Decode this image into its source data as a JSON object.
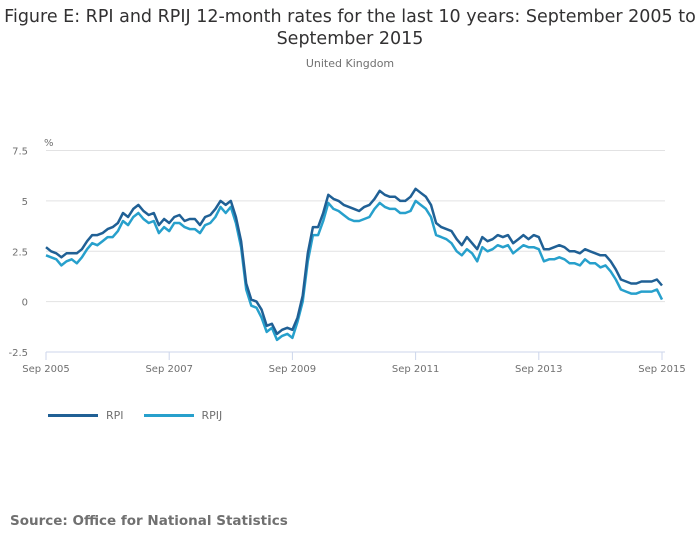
{
  "chart_data": {
    "type": "line",
    "title": "Figure E: RPI and RPIJ 12-month rates for the last 10 years: September 2005 to September 2015",
    "subtitle": "United Kingdom",
    "ylabel": "%",
    "xlabel": "",
    "ylim": [
      -2.5,
      7.5
    ],
    "yticks": [
      7.5,
      5,
      2.5,
      0,
      -2.5
    ],
    "ytick_labels": [
      "7.5",
      "5",
      "2.5",
      "0",
      "-2.5"
    ],
    "x_start": "Sep 2005",
    "x_end": "Sep 2015",
    "xtick_labels": [
      "Sep 2005",
      "Sep 2007",
      "Sep 2009",
      "Sep 2011",
      "Sep 2013",
      "Sep 2015"
    ],
    "grid": true,
    "legend_position": "bottom-left",
    "series": [
      {
        "name": "RPI",
        "color": "#206095",
        "values": [
          2.7,
          2.5,
          2.4,
          2.2,
          2.4,
          2.4,
          2.4,
          2.6,
          3.0,
          3.3,
          3.3,
          3.4,
          3.6,
          3.7,
          3.9,
          4.4,
          4.2,
          4.6,
          4.8,
          4.5,
          4.3,
          4.4,
          3.8,
          4.1,
          3.9,
          4.2,
          4.3,
          4.0,
          4.1,
          4.1,
          3.8,
          4.2,
          4.3,
          4.6,
          5.0,
          4.8,
          5.0,
          4.2,
          3.0,
          0.9,
          0.1,
          0.0,
          -0.4,
          -1.2,
          -1.1,
          -1.6,
          -1.4,
          -1.3,
          -1.4,
          -0.8,
          0.3,
          2.4,
          3.7,
          3.7,
          4.4,
          5.3,
          5.1,
          5.0,
          4.8,
          4.7,
          4.6,
          4.5,
          4.7,
          4.8,
          5.1,
          5.5,
          5.3,
          5.2,
          5.2,
          5.0,
          5.0,
          5.2,
          5.6,
          5.4,
          5.2,
          4.8,
          3.9,
          3.7,
          3.6,
          3.5,
          3.1,
          2.8,
          3.2,
          2.9,
          2.6,
          3.2,
          3.0,
          3.1,
          3.3,
          3.2,
          3.3,
          2.9,
          3.1,
          3.3,
          3.1,
          3.3,
          3.2,
          2.6,
          2.6,
          2.7,
          2.8,
          2.7,
          2.5,
          2.5,
          2.4,
          2.6,
          2.5,
          2.4,
          2.3,
          2.3,
          2.0,
          1.6,
          1.1,
          1.0,
          0.9,
          0.9,
          1.0,
          1.0,
          1.0,
          1.1,
          0.8
        ]
      },
      {
        "name": "RPIJ",
        "color": "#27a0cc",
        "values": [
          2.3,
          2.2,
          2.1,
          1.8,
          2.0,
          2.1,
          1.9,
          2.2,
          2.6,
          2.9,
          2.8,
          3.0,
          3.2,
          3.2,
          3.5,
          4.0,
          3.8,
          4.2,
          4.4,
          4.1,
          3.9,
          4.0,
          3.4,
          3.7,
          3.5,
          3.9,
          3.9,
          3.7,
          3.6,
          3.6,
          3.4,
          3.8,
          3.9,
          4.2,
          4.7,
          4.4,
          4.7,
          3.9,
          2.7,
          0.6,
          -0.2,
          -0.3,
          -0.8,
          -1.5,
          -1.3,
          -1.9,
          -1.7,
          -1.6,
          -1.8,
          -1.0,
          0.0,
          2.0,
          3.3,
          3.3,
          4.0,
          4.9,
          4.6,
          4.5,
          4.3,
          4.1,
          4.0,
          4.0,
          4.1,
          4.2,
          4.6,
          4.9,
          4.7,
          4.6,
          4.6,
          4.4,
          4.4,
          4.5,
          5.0,
          4.8,
          4.6,
          4.2,
          3.3,
          3.2,
          3.1,
          2.9,
          2.5,
          2.3,
          2.6,
          2.4,
          2.0,
          2.7,
          2.5,
          2.6,
          2.8,
          2.7,
          2.8,
          2.4,
          2.6,
          2.8,
          2.7,
          2.7,
          2.6,
          2.0,
          2.1,
          2.1,
          2.2,
          2.1,
          1.9,
          1.9,
          1.8,
          2.1,
          1.9,
          1.9,
          1.7,
          1.8,
          1.5,
          1.1,
          0.6,
          0.5,
          0.4,
          0.4,
          0.5,
          0.5,
          0.5,
          0.6,
          0.1
        ]
      }
    ]
  },
  "source": "Source: Office for National Statistics"
}
